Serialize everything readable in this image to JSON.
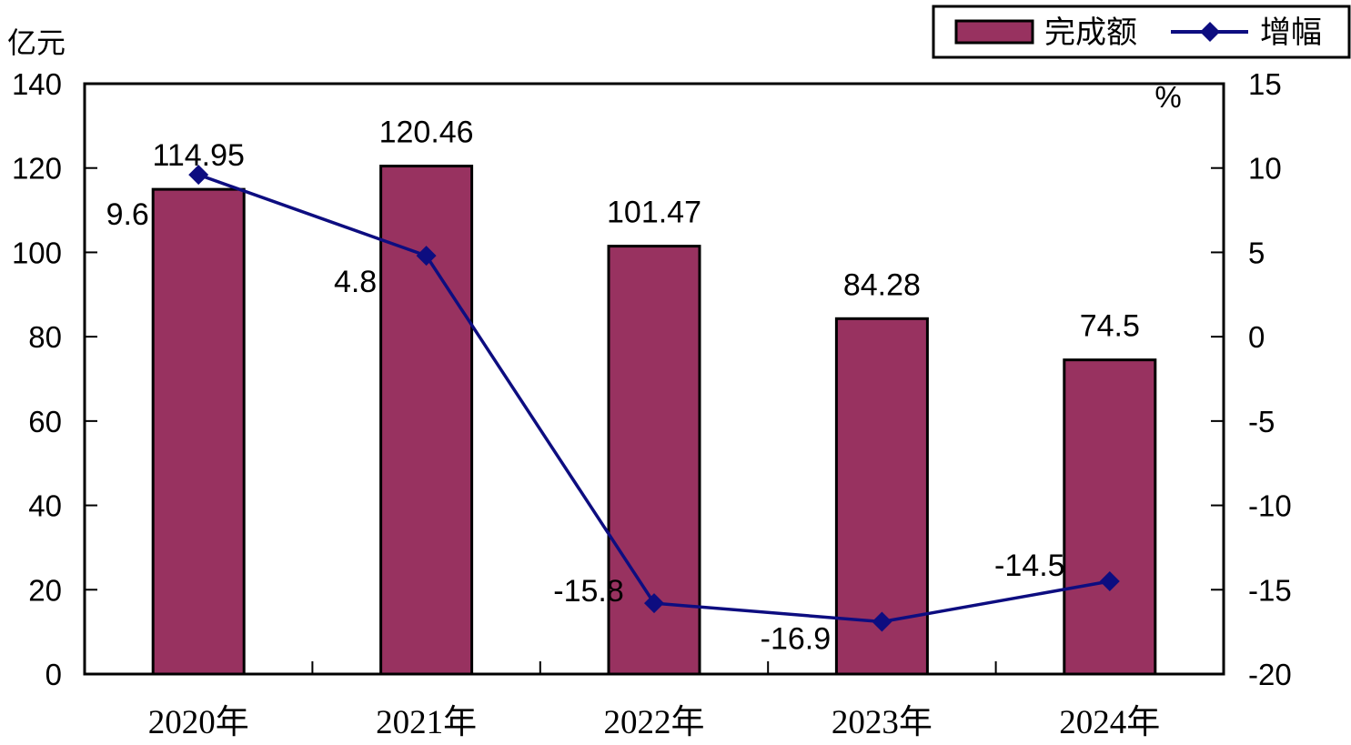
{
  "chart_data": {
    "type": "bar",
    "categories": [
      "2020年",
      "2021年",
      "2022年",
      "2023年",
      "2024年"
    ],
    "series": [
      {
        "name": "完成额",
        "type": "bar",
        "axis": "left",
        "values": [
          114.95,
          120.46,
          101.47,
          84.28,
          74.5
        ],
        "value_labels": [
          "114.95",
          "120.46",
          "101.47",
          "84.28",
          "74.5"
        ],
        "color": "#983260"
      },
      {
        "name": "增幅",
        "type": "line",
        "marker": "diamond",
        "axis": "right",
        "values": [
          9.6,
          4.8,
          -15.8,
          -16.9,
          -14.5
        ],
        "value_labels": [
          "9.6",
          "4.8",
          "-15.8",
          "-16.9",
          "-14.5"
        ],
        "color": "#0d0d80"
      }
    ],
    "y_left": {
      "unit": "亿元",
      "range": [
        0,
        140
      ],
      "ticks": [
        0,
        20,
        40,
        60,
        80,
        100,
        120,
        140
      ],
      "tick_labels": [
        "0",
        "20",
        "40",
        "60",
        "80",
        "100",
        "120",
        "140"
      ]
    },
    "y_right": {
      "unit": "%",
      "range": [
        -20,
        15
      ],
      "ticks": [
        -20,
        -15,
        -10,
        -5,
        0,
        5,
        10,
        15
      ],
      "tick_labels": [
        "-20",
        "-15",
        "-10",
        "-5",
        "0",
        "5",
        "10",
        "15"
      ]
    },
    "legend": {
      "position": "top-right",
      "items": [
        {
          "label": "完成额",
          "symbol": "bar"
        },
        {
          "label": "增幅",
          "symbol": "line-diamond"
        }
      ]
    },
    "grid": false
  }
}
